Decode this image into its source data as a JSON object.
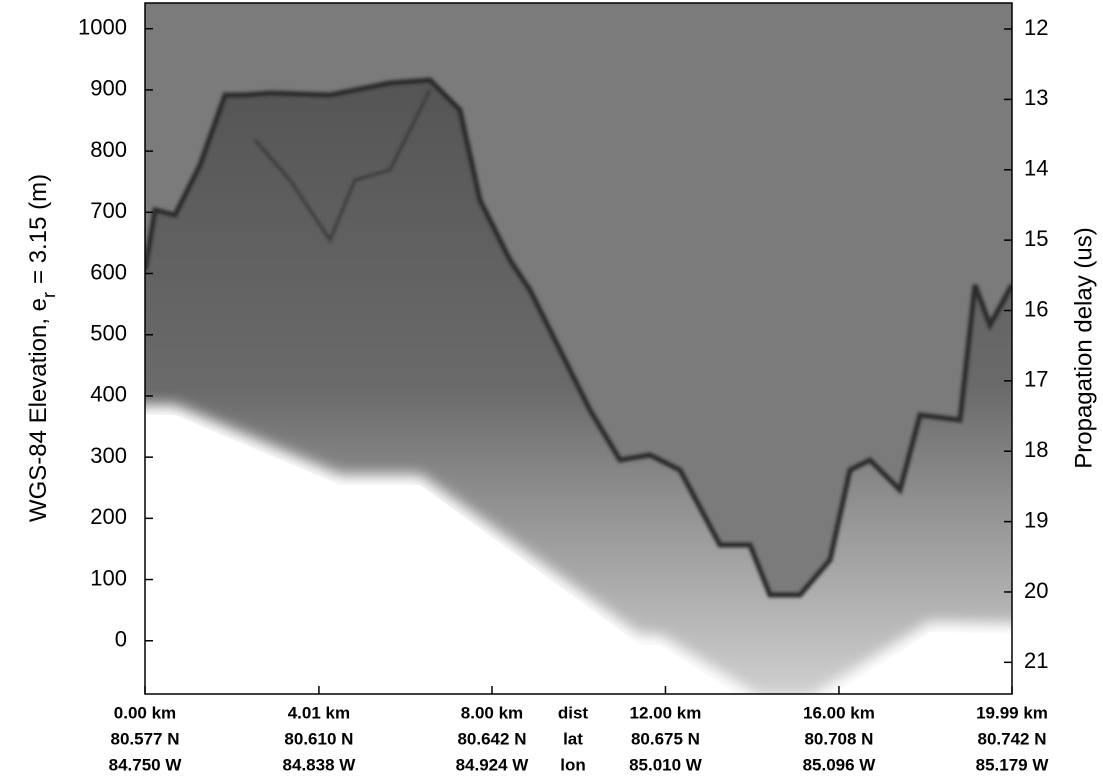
{
  "chart_data": {
    "type": "radargram",
    "y_label": "WGS-84 Elevation, e",
    "y_label_subscript": "r",
    "y_label_tail": "= 3.15 (m)",
    "y2_label": "Propagation delay (us)",
    "ylim": [
      -87,
      1042
    ],
    "yticks": [
      0,
      100,
      200,
      300,
      400,
      500,
      600,
      700,
      800,
      900,
      1000
    ],
    "y2lim": [
      21.45,
      11.63
    ],
    "y2ticks": [
      12,
      13,
      14,
      15,
      16,
      17,
      18,
      19,
      20,
      21
    ],
    "xlim": [
      0,
      19.99
    ],
    "xticks": [
      {
        "value": 0,
        "label": "0.00 km"
      },
      {
        "value": 4.01,
        "label": "4.01 km"
      },
      {
        "value": 8,
        "label": "8.00 km"
      },
      {
        "value": 12,
        "label": "12.00 km"
      },
      {
        "value": 16,
        "label": "16.00 km"
      },
      {
        "value": 19.99,
        "label": "19.99 km"
      }
    ],
    "lat_labels": [
      "80.577 N",
      "80.610 N",
      "80.642 N",
      "80.675 N",
      "80.708 N",
      "80.742 N"
    ],
    "lon_labels": [
      "84.750 W",
      "84.838 W",
      "84.924 W",
      "85.010 W",
      "85.096 W",
      "85.179 W"
    ],
    "row_labels": [
      "dist",
      "lat",
      "lon"
    ]
  }
}
